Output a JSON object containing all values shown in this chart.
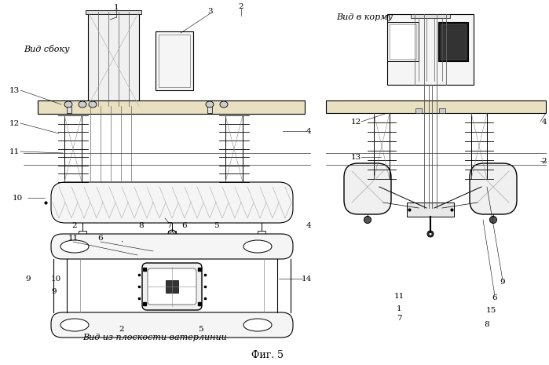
{
  "bg_color": "#ffffff",
  "lc": "#000000",
  "view_side_label": "Вид сбоку",
  "view_stern_label": "Вид в корму",
  "view_waterline_label": "Вид из плоскости ватерлинии",
  "fig_label": "Фиг. 5"
}
